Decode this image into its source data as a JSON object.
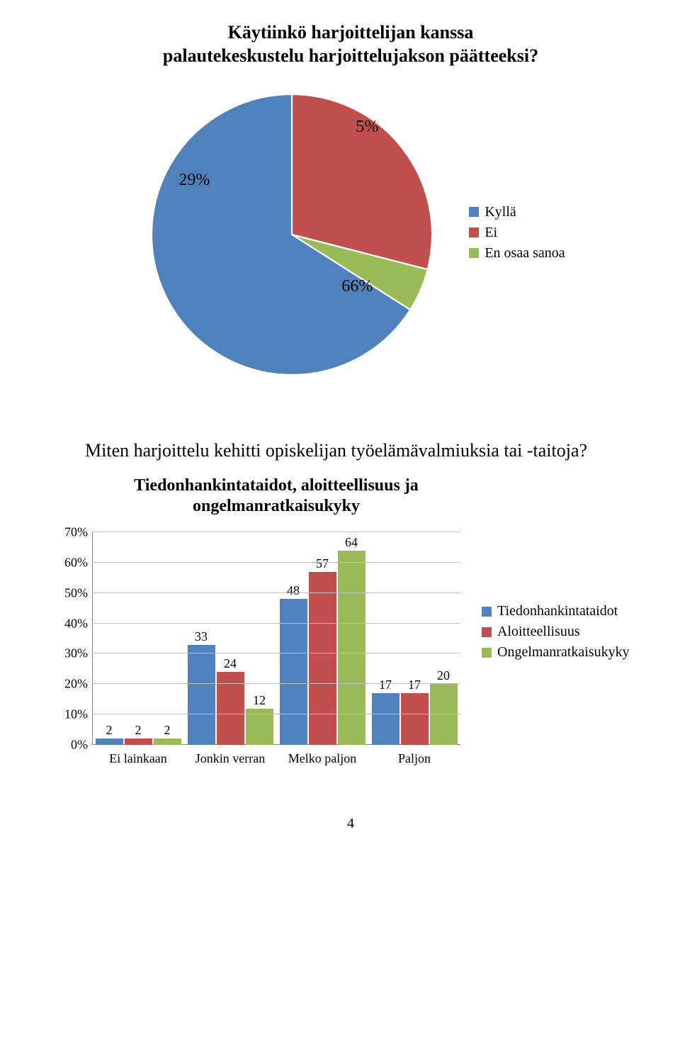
{
  "pie_chart": {
    "title_line1": "Käytiinkö harjoittelijan kanssa",
    "title_line2": "palautekeskustelu harjoittelujakson päätteeksi?",
    "slices": [
      {
        "label": "Kyllä",
        "value": 66,
        "display": "66%",
        "color": "#4f81bd"
      },
      {
        "label": "Ei",
        "value": 29,
        "display": "29%",
        "color": "#c0504d"
      },
      {
        "label": "En osaa sanoa",
        "value": 5,
        "display": "5%",
        "color": "#9bbb59"
      }
    ],
    "legend_swatch_colors": [
      "#4f81bd",
      "#c0504d",
      "#9bbb59"
    ]
  },
  "section_title": "Miten harjoittelu kehitti opiskelijan työelämävalmiuksia tai -taitoja?",
  "bar_chart": {
    "title_line1": "Tiedonhankintataidot, aloitteellisuus ja",
    "title_line2": "ongelmanratkaisukyky",
    "y_max": 70,
    "y_tick_step": 10,
    "y_ticks": [
      "0%",
      "10%",
      "20%",
      "30%",
      "40%",
      "50%",
      "60%",
      "70%"
    ],
    "grid_color": "#bfbfbf",
    "categories": [
      "Ei lainkaan",
      "Jonkin verran",
      "Melko paljon",
      "Paljon"
    ],
    "series": [
      {
        "name": "Tiedonhankintataidot",
        "color": "#4f81bd",
        "values": [
          2,
          33,
          48,
          17
        ]
      },
      {
        "name": "Aloitteellisuus",
        "color": "#c0504d",
        "values": [
          2,
          24,
          57,
          17
        ]
      },
      {
        "name": "Ongelmanratkaisukyky",
        "color": "#9bbb59",
        "values": [
          2,
          12,
          64,
          20
        ]
      }
    ]
  },
  "page_number": "4"
}
